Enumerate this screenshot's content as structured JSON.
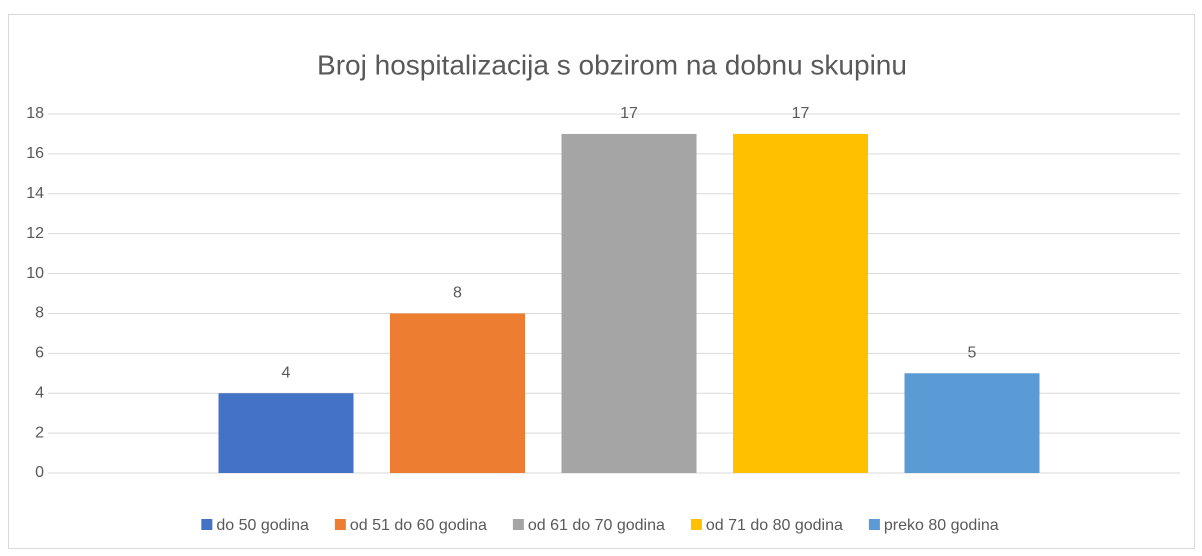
{
  "chart_data": {
    "type": "bar",
    "title": "Broj hospitalizacija s obzirom na dobnu skupinu",
    "categories": [
      null
    ],
    "series": [
      {
        "name": "do 50 godina",
        "color": "#4472c4",
        "values": [
          4
        ]
      },
      {
        "name": "od 51 do 60 godina",
        "color": "#ed7d31",
        "values": [
          8
        ]
      },
      {
        "name": "od 61 do 70 godina",
        "color": "#a5a5a5",
        "values": [
          17
        ]
      },
      {
        "name": "od 71 do 80 godina",
        "color": "#ffc000",
        "values": [
          17
        ]
      },
      {
        "name": "preko 80 godina",
        "color": "#5b9bd5",
        "values": [
          5
        ]
      }
    ],
    "ylim": [
      0,
      18
    ],
    "yticks": [
      0,
      2,
      4,
      6,
      8,
      10,
      12,
      14,
      16,
      18
    ],
    "grid": true,
    "legend": "bottom"
  }
}
